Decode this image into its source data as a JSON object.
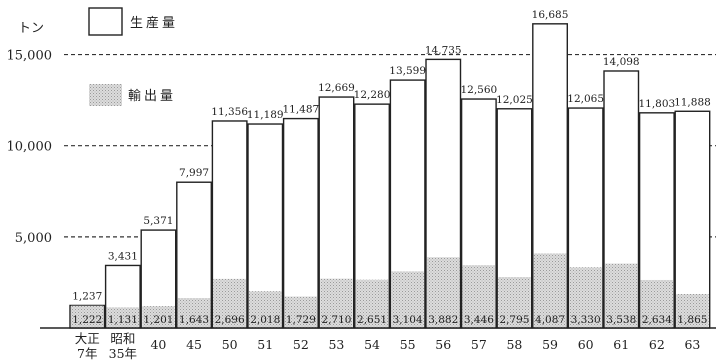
{
  "chart_data": {
    "type": "bar",
    "unit": "トン",
    "categories": [
      [
        "大正",
        "7年"
      ],
      [
        "昭和",
        "35年"
      ],
      [
        "40"
      ],
      [
        "45"
      ],
      [
        "50"
      ],
      [
        "51"
      ],
      [
        "52"
      ],
      [
        "53"
      ],
      [
        "54"
      ],
      [
        "55"
      ],
      [
        "56"
      ],
      [
        "57"
      ],
      [
        "58"
      ],
      [
        "59"
      ],
      [
        "60"
      ],
      [
        "61"
      ],
      [
        "62"
      ],
      [
        "63"
      ]
    ],
    "series": [
      {
        "name": "生産量",
        "values": [
          1237,
          3431,
          5371,
          7997,
          11356,
          11189,
          11487,
          12669,
          12280,
          13599,
          14735,
          12560,
          12025,
          16685,
          12065,
          14098,
          11803,
          11888
        ],
        "labels": [
          "1,237",
          "3,431",
          "5,371",
          "7,997",
          "11,356",
          "11,189",
          "11,487",
          "12,669",
          "12,280",
          "13,599",
          "14,735",
          "12,560",
          "12,025",
          "16,685",
          "12,065",
          "14,098",
          "11,803",
          "11,888"
        ]
      },
      {
        "name": "輸出量",
        "values": [
          1222,
          1131,
          1201,
          1643,
          2696,
          2018,
          1729,
          2710,
          2651,
          3104,
          3882,
          3446,
          2795,
          4087,
          3330,
          3538,
          2634,
          1865
        ],
        "labels": [
          "1,222",
          "1,131",
          "1,201",
          "1,643",
          "2,696",
          "2,018",
          "1,729",
          "2,710",
          "2,651",
          "3,104",
          "3,882",
          "3,446",
          "2,795",
          "4,087",
          "3,330",
          "3,538",
          "2,634",
          "1,865"
        ]
      }
    ],
    "yticks": [
      {
        "value": 5000,
        "label": "5,000"
      },
      {
        "value": 10000,
        "label": "10,000"
      },
      {
        "value": 15000,
        "label": "15,000"
      }
    ],
    "ylim": [
      0,
      17500
    ],
    "grid": true,
    "legend_position": "top-left",
    "colors": {
      "production": "#ffffff",
      "export": "#d6d6d6",
      "outline": "#222222",
      "grid": "#333333"
    }
  }
}
